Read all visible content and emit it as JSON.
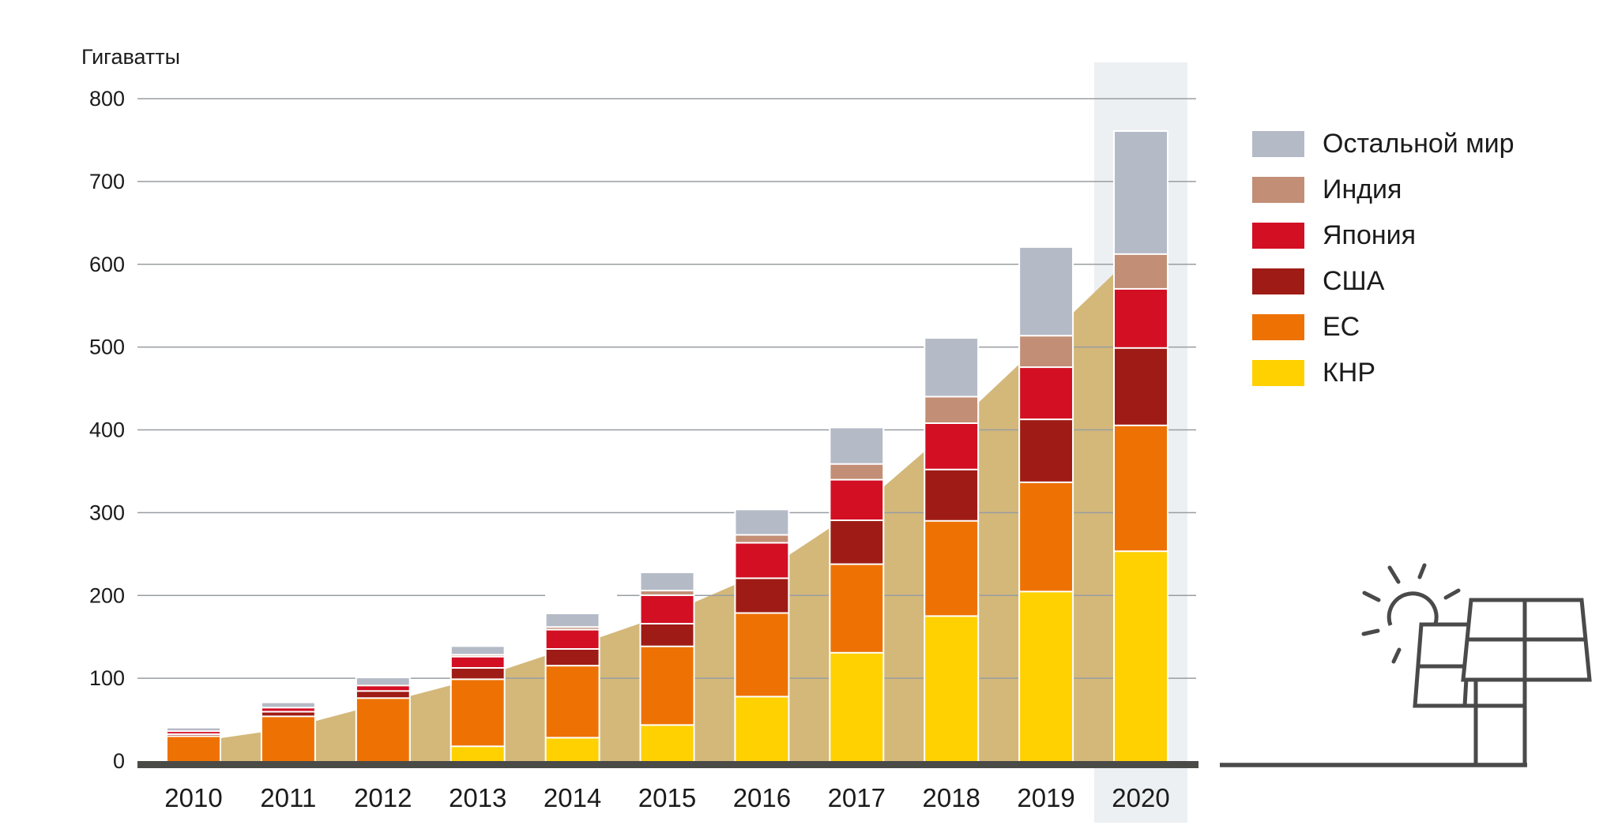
{
  "axis": {
    "y_title": "Гигаватты"
  },
  "colors": {
    "background": "#ffffff",
    "highlight_band": "#edf0f3",
    "trend_area": "#d3b87a",
    "gridline": "#989da1",
    "axis_line": "#4a4a47",
    "text": "#1b1b1b",
    "illustration_stroke": "#4a4a4a"
  },
  "legend": [
    {
      "label": "Остальной мир",
      "color": "#b4bac6"
    },
    {
      "label": "Индия",
      "color": "#c28e75"
    },
    {
      "label": "Япония",
      "color": "#d30f23"
    },
    {
      "label": "США",
      "color": "#9e1c15"
    },
    {
      "label": "ЕС",
      "color": "#ee7203"
    },
    {
      "label": "КНР",
      "color": "#ffd100"
    }
  ],
  "chart_data": {
    "type": "bar",
    "subtype": "stacked-column",
    "title": "",
    "ylabel": "Гигаватты",
    "xlabel": "",
    "ylim": [
      0,
      800
    ],
    "yticks": [
      0,
      100,
      200,
      300,
      400,
      500,
      600,
      700,
      800
    ],
    "grid": true,
    "legend_position": "right",
    "categories": [
      "2010",
      "2011",
      "2012",
      "2013",
      "2014",
      "2015",
      "2016",
      "2017",
      "2018",
      "2019",
      "2020"
    ],
    "series": [
      {
        "name": "КНР",
        "color": "#ffd100",
        "values": [
          0,
          0,
          0,
          17.8,
          28.2,
          43.5,
          77.8,
          130.8,
          175.1,
          204.7,
          253.4
        ]
      },
      {
        "name": "ЕС",
        "color": "#ee7203",
        "values": [
          30,
          54,
          76,
          81,
          87,
          95,
          101,
          107,
          115,
          132,
          152
        ]
      },
      {
        "name": "США",
        "color": "#9e1c15",
        "values": [
          2.5,
          5.6,
          8.6,
          13.7,
          20.2,
          27.4,
          42,
          53,
          62,
          76,
          93.5
        ]
      },
      {
        "name": "Япония",
        "color": "#d30f23",
        "values": [
          3.6,
          4.9,
          6.6,
          13.6,
          23.3,
          34.4,
          42.8,
          49,
          56,
          63,
          71.4
        ]
      },
      {
        "name": "Индия",
        "color": "#c28e75",
        "values": [
          0.1,
          0.5,
          1.2,
          2.3,
          3.2,
          5.6,
          9.6,
          19,
          32,
          38,
          42
        ]
      },
      {
        "name": "Остальной мир",
        "color": "#b4bac6",
        "values": [
          3.3,
          5,
          7.6,
          9.6,
          15.6,
          21.1,
          29.8,
          43.2,
          70,
          106.3,
          147.7
        ]
      }
    ],
    "totals": [
      39.5,
      70,
      100,
      138,
      177.5,
      227,
      303,
      402,
      510,
      620,
      760
    ],
    "background_trend_area": {
      "description": "tan area behind bars: world cumulative total lagged one year",
      "color": "#d3b87a",
      "values_at_categories": [
        23,
        39.5,
        70,
        100,
        138,
        177.5,
        227,
        303,
        402,
        510,
        620
      ]
    },
    "highlight_year": "2020"
  },
  "illustration": {
    "parts": [
      "sun",
      "small-solar-panel",
      "large-solar-panel",
      "ground-line"
    ]
  }
}
